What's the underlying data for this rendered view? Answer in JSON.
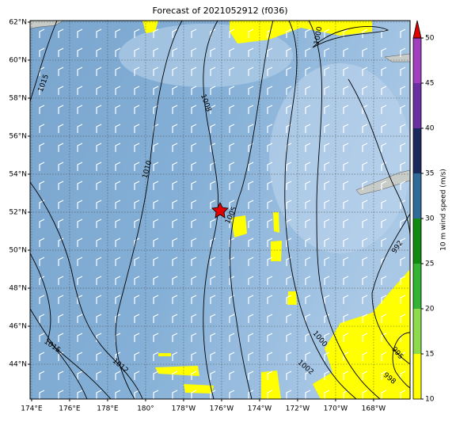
{
  "title": "Forecast of 2021052912 (f036)",
  "map": {
    "lon_lim": [
      173.92,
      193.92
    ],
    "lat_lim": [
      42.17,
      62.08
    ],
    "grid": true,
    "lon_ticks": [
      {
        "value": 174,
        "label": "174°E"
      },
      {
        "value": 176,
        "label": "176°E"
      },
      {
        "value": 178,
        "label": "178°E"
      },
      {
        "value": 180,
        "label": "180°"
      },
      {
        "value": 182,
        "label": "178°W"
      },
      {
        "value": 184,
        "label": "176°W"
      },
      {
        "value": 186,
        "label": "174°W"
      },
      {
        "value": 188,
        "label": "172°W"
      },
      {
        "value": 190,
        "label": "170°W"
      },
      {
        "value": 192,
        "label": "168°W"
      }
    ],
    "lat_ticks": [
      {
        "value": 44,
        "label": "44°N"
      },
      {
        "value": 46,
        "label": "46°N"
      },
      {
        "value": 48,
        "label": "48°N"
      },
      {
        "value": 50,
        "label": "50°N"
      },
      {
        "value": 52,
        "label": "52°N"
      },
      {
        "value": 54,
        "label": "54°N"
      },
      {
        "value": 56,
        "label": "56°N"
      },
      {
        "value": 58,
        "label": "58°N"
      },
      {
        "value": 60,
        "label": "60°N"
      },
      {
        "value": 62,
        "label": "62°N"
      }
    ]
  },
  "contour_labels": [
    1015,
    1010,
    1008,
    1005,
    1000,
    992,
    1000,
    995,
    998,
    1002,
    1012,
    1015
  ],
  "colorbar": {
    "label": "10 m wind speed (m/s)",
    "lim": [
      10,
      50
    ],
    "ticks": [
      10,
      15,
      20,
      25,
      30,
      35,
      40,
      45,
      50
    ],
    "colors": [
      "#ffff00",
      "#8fdc4a",
      "#33b533",
      "#108a10",
      "#2e6b98",
      "#1b2a5c",
      "#6a2fa0",
      "#a23fbf"
    ],
    "extend_color": "#e00000"
  }
}
